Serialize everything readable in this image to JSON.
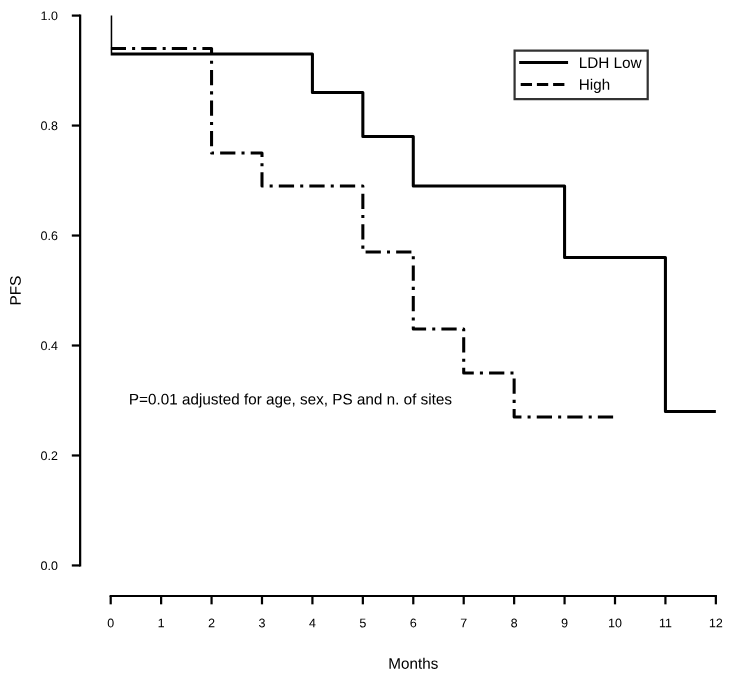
{
  "chart_data": {
    "type": "step",
    "xlabel": "Months",
    "ylabel": "PFS",
    "series": [
      {
        "name": "LDH Low",
        "color": "#000000",
        "line_style": "solid",
        "x": [
          0,
          0,
          4,
          5,
          6,
          9,
          11,
          12
        ],
        "values": [
          1.0,
          0.93,
          0.86,
          0.78,
          0.69,
          0.56,
          0.28,
          0.28
        ]
      },
      {
        "name": "High",
        "color": "#000000",
        "line_style": "dashed",
        "x": [
          0,
          2,
          3,
          5,
          6,
          7,
          8,
          10
        ],
        "values": [
          0.94,
          0.75,
          0.69,
          0.57,
          0.43,
          0.35,
          0.27,
          0.27
        ]
      }
    ],
    "xlim": [
      0,
      12
    ],
    "ylim": [
      0,
      1
    ],
    "xticks": [
      0,
      1,
      2,
      3,
      4,
      5,
      6,
      7,
      8,
      9,
      10,
      11,
      12
    ],
    "yticks": [
      {
        "value": 0,
        "label": "0.0"
      },
      0.2,
      0.4,
      0.6,
      0.8,
      {
        "value": 1,
        "label": "1.0"
      }
    ],
    "legend": "top right",
    "grid": false,
    "annotations": [
      "P=0.01 adjusted for age, sex, PS and n. of sites"
    ]
  }
}
